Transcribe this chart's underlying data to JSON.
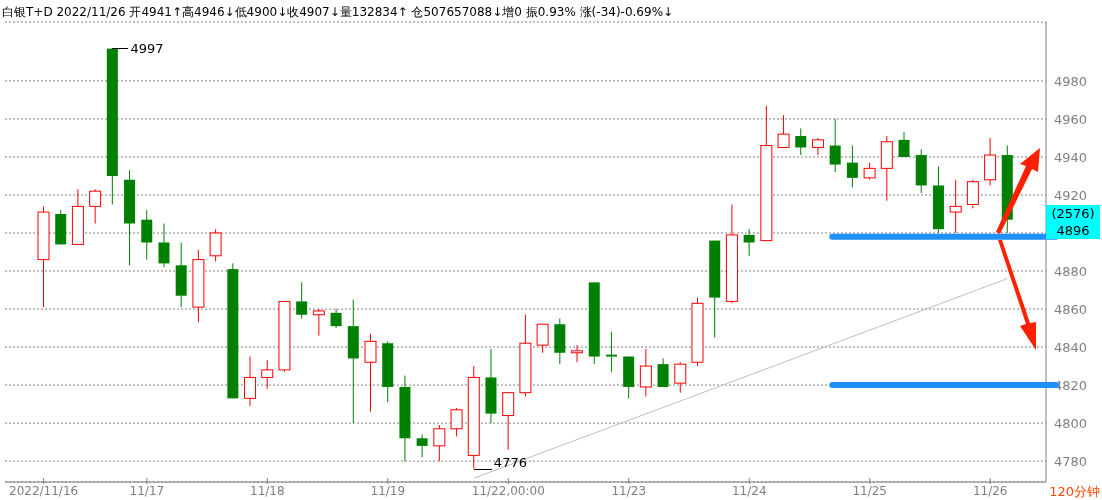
{
  "chart_data": {
    "type": "candlestick",
    "title": "白银T+D 2022/11/26 开4941↑高4946↓低4900↓收4907↓量132834↑ 仓507657088↓增0 振0.93% 涨(-34)-0.69%↓",
    "categories": [
      "2022/11/16",
      null,
      null,
      null,
      null,
      null,
      "11/17",
      null,
      null,
      null,
      null,
      null,
      null,
      "11/18",
      null,
      null,
      null,
      null,
      null,
      null,
      "11/19",
      null,
      null,
      null,
      null,
      null,
      null,
      "11/22,00:00",
      null,
      null,
      null,
      null,
      null,
      null,
      "11/23",
      null,
      null,
      null,
      null,
      null,
      null,
      "11/24",
      null,
      null,
      null,
      null,
      null,
      null,
      "11/25",
      null,
      null,
      null,
      null,
      null,
      null,
      "11/26",
      null
    ],
    "ohlc": [
      [
        4886,
        4914,
        4861,
        4911
      ],
      [
        4910,
        4912,
        4894,
        4894
      ],
      [
        4894,
        4923,
        4894,
        4914
      ],
      [
        4914,
        4923,
        4905,
        4922
      ],
      [
        4997,
        4997,
        4915,
        4930
      ],
      [
        4928,
        4933,
        4883,
        4905
      ],
      [
        4907,
        4912,
        4886,
        4895
      ],
      [
        4895,
        4905,
        4882,
        4884
      ],
      [
        4883,
        4895,
        4861,
        4867
      ],
      [
        4861,
        4891,
        4853,
        4886
      ],
      [
        4888,
        4902,
        4885,
        4900
      ],
      [
        4881,
        4884,
        4813,
        4813
      ],
      [
        4813,
        4835,
        4809,
        4824
      ],
      [
        4824,
        4833,
        4818,
        4828
      ],
      [
        4828,
        4864,
        4827,
        4864
      ],
      [
        4864,
        4874,
        4855,
        4857
      ],
      [
        4857,
        4860,
        4846,
        4859
      ],
      [
        4858,
        4860,
        4850,
        4851
      ],
      [
        4851,
        4865,
        4800,
        4834
      ],
      [
        4832,
        4847,
        4806,
        4843
      ],
      [
        4842,
        4843,
        4811,
        4819
      ],
      [
        4819,
        4825,
        4780,
        4792
      ],
      [
        4792,
        4794,
        4782,
        4788
      ],
      [
        4788,
        4799,
        4780,
        4797
      ],
      [
        4797,
        4808,
        4793,
        4807
      ],
      [
        4783,
        4830,
        4776,
        4824
      ],
      [
        4824,
        4839,
        4800,
        4805
      ],
      [
        4804,
        4816,
        4786,
        4816
      ],
      [
        4816,
        4857,
        4814,
        4842
      ],
      [
        4841,
        4852,
        4837,
        4852
      ],
      [
        4852,
        4855,
        4831,
        4837
      ],
      [
        4837,
        4841,
        4832,
        4838
      ],
      [
        4874,
        4874,
        4831,
        4835
      ],
      [
        4836,
        4848,
        4827,
        4835
      ],
      [
        4835,
        4835,
        4813,
        4819
      ],
      [
        4819,
        4839,
        4814,
        4830
      ],
      [
        4831,
        4834,
        4819,
        4819
      ],
      [
        4821,
        4832,
        4816,
        4831
      ],
      [
        4832,
        4866,
        4830,
        4863
      ],
      [
        4896,
        4896,
        4845,
        4866
      ],
      [
        4864,
        4915,
        4863,
        4899
      ],
      [
        4899,
        4902,
        4888,
        4895
      ],
      [
        4896,
        4967,
        4896,
        4946
      ],
      [
        4945,
        4962,
        4945,
        4952
      ],
      [
        4951,
        4955,
        4941,
        4945
      ],
      [
        4945,
        4950,
        4941,
        4949
      ],
      [
        4946,
        4960,
        4932,
        4936
      ],
      [
        4937,
        4946,
        4924,
        4929
      ],
      [
        4929,
        4937,
        4928,
        4934
      ],
      [
        4934,
        4951,
        4917,
        4948
      ],
      [
        4949,
        4953,
        4940,
        4940
      ],
      [
        4941,
        4944,
        4921,
        4925
      ],
      [
        4925,
        4935,
        4900,
        4902
      ],
      [
        4911,
        4928,
        4900,
        4914
      ],
      [
        4915,
        4928,
        4913,
        4927
      ],
      [
        4928,
        4950,
        4925,
        4941
      ],
      [
        4941,
        4946,
        4900,
        4907
      ]
    ],
    "colors": [
      "#ff0000",
      "#008000",
      "#ff0000",
      "#ff0000",
      "#008000",
      "#008000",
      "#008000",
      "#008000",
      "#008000",
      "#ff0000",
      "#ff0000",
      "#008000",
      "#ff0000",
      "#ff0000",
      "#ff0000",
      "#008000",
      "#ff0000",
      "#008000",
      "#008000",
      "#ff0000",
      "#008000",
      "#008000",
      "#008000",
      "#ff0000",
      "#ff0000",
      "#ff0000",
      "#008000",
      "#ff0000",
      "#ff0000",
      "#ff0000",
      "#008000",
      "#ff0000",
      "#008000",
      "#008000",
      "#008000",
      "#ff0000",
      "#008000",
      "#ff0000",
      "#ff0000",
      "#008000",
      "#ff0000",
      "#008000",
      "#ff0000",
      "#ff0000",
      "#008000",
      "#ff0000",
      "#008000",
      "#008000",
      "#ff0000",
      "#ff0000",
      "#008000",
      "#008000",
      "#008000",
      "#ff0000",
      "#ff0000",
      "#ff0000",
      "#008000"
    ],
    "series": [
      {
        "type": "line",
        "color": "#c0c0c0",
        "values": [
          null,
          null,
          null,
          null,
          null,
          null,
          null,
          null,
          null,
          null,
          null,
          null,
          null,
          null,
          null,
          null,
          null,
          null,
          null,
          null,
          null,
          null,
          null,
          null,
          null,
          4771,
          null,
          null,
          null,
          null,
          null,
          null,
          null,
          null,
          null,
          null,
          null,
          null,
          null,
          null,
          null,
          null,
          null,
          null,
          null,
          null,
          null,
          null,
          null,
          null,
          null,
          null,
          null,
          null,
          null,
          null,
          4876
        ]
      }
    ],
    "marker": "none",
    "ylim": [
      4769,
      5011
    ],
    "yticks": [
      4780,
      4800,
      4820,
      4840,
      4860,
      4880,
      {
        "value": 4900,
        "label": null
      },
      4920,
      4940,
      4960,
      4980
    ],
    "grid": "y",
    "legend": false,
    "ref_lines": [
      {
        "axis": "y",
        "value": 4898,
        "color": "#1e90ff"
      },
      {
        "axis": "y",
        "value": 4820,
        "color": "#1e90ff"
      }
    ],
    "annotations": [
      "4997",
      {
        "text": "4776",
        "y": 4776
      },
      "(2576)",
      "4896",
      "120分钟"
    ]
  }
}
